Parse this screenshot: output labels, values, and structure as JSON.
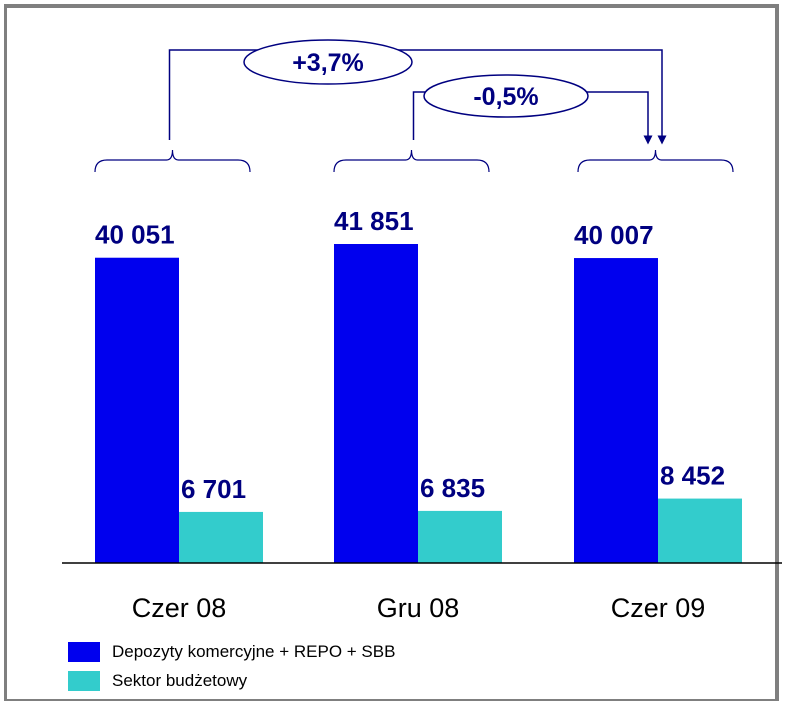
{
  "chart_data": {
    "type": "bar",
    "categories": [
      "Czer 08",
      "Gru 08",
      "Czer 09"
    ],
    "series": [
      {
        "name": "Depozyty komercyjne + REPO + SBB",
        "color": "#0000ee",
        "values": [
          40051,
          41851,
          40007
        ],
        "labels": [
          "40 051",
          "41 851",
          "40 007"
        ]
      },
      {
        "name": "Sektor budżetowy",
        "color": "#33cccc",
        "values": [
          6701,
          6835,
          8452
        ],
        "labels": [
          "6 701",
          "6 835",
          "8 452"
        ]
      }
    ],
    "annotations": [
      {
        "text": "+3,7%",
        "from": "Czer 08",
        "to": "Czer 09"
      },
      {
        "text": "-0,5%",
        "from": "Gru 08",
        "to": "Czer 09"
      }
    ],
    "legend_position": "bottom-left",
    "ylim": [
      0,
      50000
    ],
    "grid": false
  }
}
